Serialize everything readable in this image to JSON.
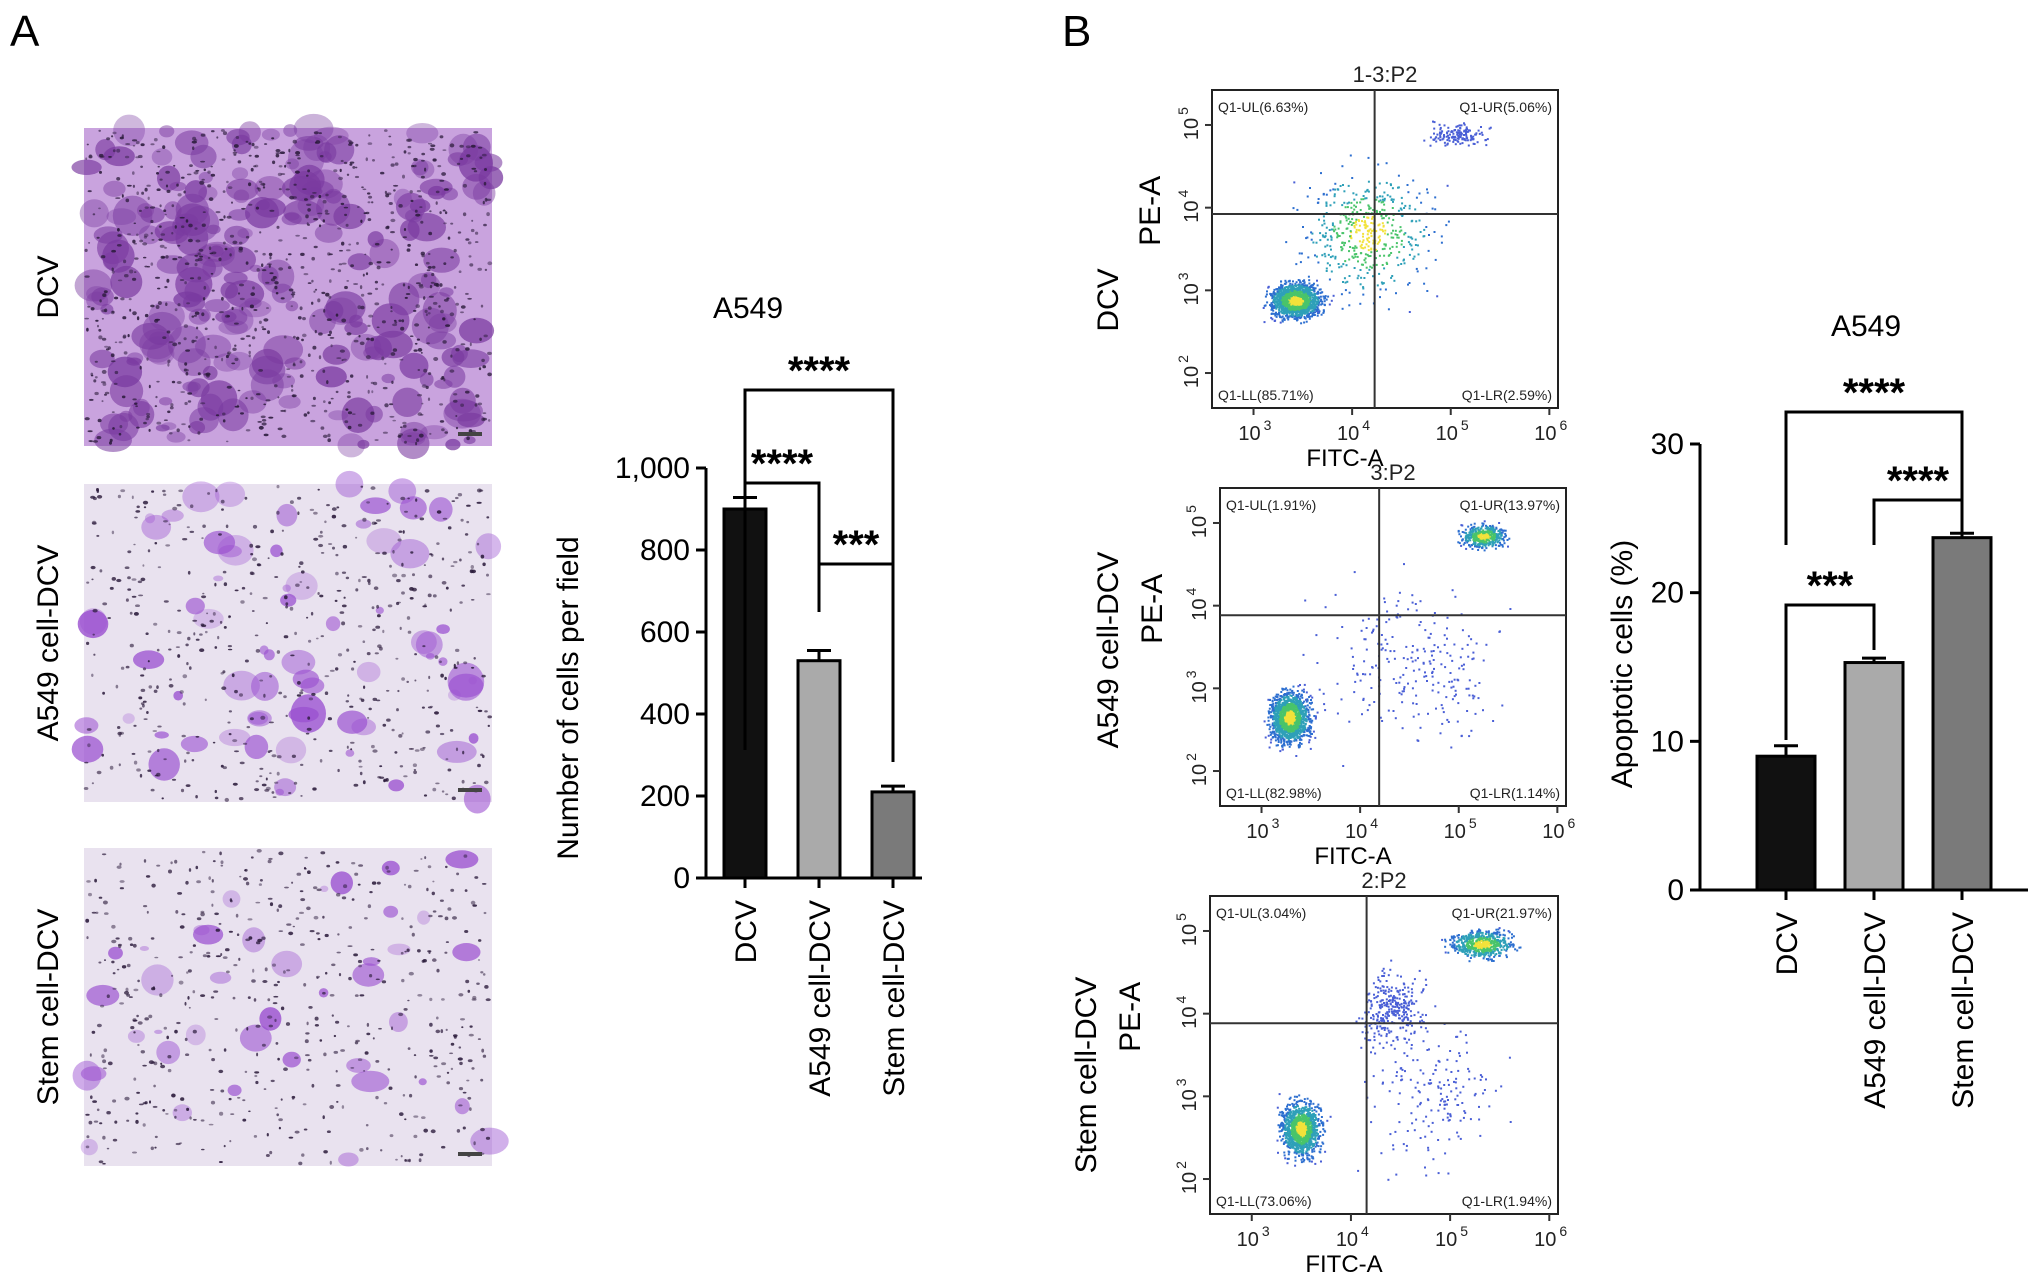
{
  "panel_a": {
    "letter": "A",
    "micrograph_labels": [
      "DCV",
      "A549 cell-DCV",
      "Stem cell-DCV"
    ],
    "micrograph_colors": {
      "dense": "#7a3aa0",
      "stain": "#9a4fd0",
      "background": "#e9e2ef",
      "nuclei": "#2a1a3a"
    },
    "chart_data": {
      "type": "bar",
      "title": "A549",
      "xlabel": "",
      "ylabel": "Number of cells per field",
      "categories": [
        "DCV",
        "A549 cell-DCV",
        "Stem cell-DCV"
      ],
      "values": [
        900,
        530,
        210
      ],
      "errors": [
        28,
        25,
        14
      ],
      "bar_colors": [
        "#111111",
        "#aaaaaa",
        "#7a7a7a"
      ],
      "ylim": [
        0,
        1000
      ],
      "yticks": [
        0,
        200,
        400,
        600,
        800,
        1000
      ],
      "ytick_labels": [
        "0",
        "200",
        "400",
        "600",
        "800",
        "1,000"
      ],
      "significance": [
        {
          "from": 0,
          "to": 1,
          "label": "****",
          "level": 1
        },
        {
          "from": 0,
          "to": 2,
          "label": "****",
          "level": 2
        },
        {
          "from": 1,
          "to": 2,
          "label": "***",
          "level": 0
        }
      ]
    }
  },
  "panel_b": {
    "letter": "B",
    "flow_plots": [
      {
        "row_label": "DCV",
        "title": "1-3:P2",
        "ylabel": "PE-A",
        "xlabel": "FITC-A",
        "UL": "Q1-UL(6.63%)",
        "UR": "Q1-UR(5.06%)",
        "LL": "Q1-LL(85.71%)",
        "LR": "Q1-LR(2.59%)"
      },
      {
        "row_label": "A549 cell-DCV",
        "title": "3:P2",
        "ylabel": "PE-A",
        "xlabel": "FITC-A",
        "UL": "Q1-UL(1.91%)",
        "UR": "Q1-UR(13.97%)",
        "LL": "Q1-LL(82.98%)",
        "LR": "Q1-LR(1.14%)"
      },
      {
        "row_label": "Stem cell-DCV",
        "title": "2:P2",
        "ylabel": "PE-A",
        "xlabel": "FITC-A",
        "UL": "Q1-UL(3.04%)",
        "UR": "Q1-UR(21.97%)",
        "LL": "Q1-LL(73.06%)",
        "LR": "Q1-LR(1.94%)"
      }
    ],
    "flow_axis_ticks": [
      "10",
      "10",
      "10",
      "10"
    ],
    "flow_x_exponents": [
      "3",
      "4",
      "5",
      "6"
    ],
    "flow_y_exponents": [
      "2",
      "3",
      "4",
      "5"
    ],
    "chart_data": {
      "type": "bar",
      "title": "A549",
      "xlabel": "",
      "ylabel": "Apoptotic cells (%)",
      "categories": [
        "DCV",
        "A549 cell-DCV",
        "Stem cell-DCV"
      ],
      "values": [
        9,
        15.3,
        23.7
      ],
      "errors": [
        0.7,
        0.3,
        0.3
      ],
      "bar_colors": [
        "#111111",
        "#aaaaaa",
        "#7a7a7a"
      ],
      "ylim": [
        0,
        30
      ],
      "yticks": [
        0,
        10,
        20,
        30
      ],
      "ytick_labels": [
        "0",
        "10",
        "20",
        "30"
      ],
      "significance": [
        {
          "from": 0,
          "to": 1,
          "label": "***",
          "level": 0
        },
        {
          "from": 1,
          "to": 2,
          "label": "****",
          "level": 1
        },
        {
          "from": 0,
          "to": 2,
          "label": "****",
          "level": 2
        }
      ]
    }
  }
}
